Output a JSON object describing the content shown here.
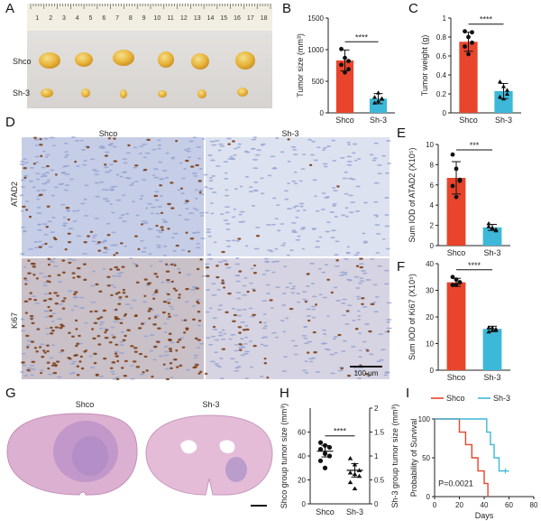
{
  "panels": {
    "A": {
      "label": "A",
      "ruler_numbers": [
        "1",
        "2",
        "3",
        "4",
        "5",
        "6",
        "7",
        "8",
        "9",
        "10",
        "11",
        "12",
        "13",
        "14",
        "15",
        "16",
        "17",
        "18"
      ],
      "row_labels": [
        "Shco",
        "Sh-3"
      ]
    },
    "B": {
      "label": "B"
    },
    "C": {
      "label": "C"
    },
    "D": {
      "label": "D",
      "column_labels": [
        "Shco",
        "Sh-3"
      ],
      "row_labels": [
        "ATAD2",
        "Ki67"
      ],
      "scale_bar": "100 μm"
    },
    "E": {
      "label": "E"
    },
    "F": {
      "label": "F"
    },
    "G": {
      "label": "G",
      "column_labels": [
        "Shco",
        "Sh-3"
      ]
    },
    "H": {
      "label": "H"
    },
    "I": {
      "label": "I"
    }
  },
  "colors": {
    "shco": "#e8452c",
    "sh3": "#3db8d8",
    "he_tissue": "#dcb0d0",
    "ihc_blue": "#8f9fd0",
    "ihc_brown": "#7a3a10"
  },
  "chart_data": [
    {
      "id": "B",
      "type": "bar",
      "categories": [
        "Shco",
        "Sh-3"
      ],
      "values": [
        830,
        225
      ],
      "errors": [
        165,
        80
      ],
      "points": [
        [
          1010,
          870,
          820,
          760,
          640,
          690
        ],
        [
          160,
          320,
          230,
          250,
          190,
          220
        ]
      ],
      "ylabel": "Tumor size (mm³)",
      "ylim": [
        0,
        1500
      ],
      "yticks": [
        0,
        500,
        1000,
        1500
      ],
      "significance": "****"
    },
    {
      "id": "C",
      "type": "bar",
      "categories": [
        "Shco",
        "Sh-3"
      ],
      "values": [
        0.75,
        0.23
      ],
      "errors": [
        0.1,
        0.08
      ],
      "points": [
        [
          0.86,
          0.8,
          0.74,
          0.7,
          0.62,
          0.85
        ],
        [
          0.33,
          0.28,
          0.2,
          0.17,
          0.15,
          0.24
        ]
      ],
      "ylabel": "Tumor weight (g)",
      "ylim": [
        0,
        1.0
      ],
      "yticks": [
        0.0,
        0.2,
        0.4,
        0.6,
        0.8,
        1.0
      ],
      "significance": "****"
    },
    {
      "id": "E",
      "type": "bar",
      "categories": [
        "Shco",
        "Sh-3"
      ],
      "values": [
        6.7,
        1.8
      ],
      "errors": [
        1.6,
        0.3
      ],
      "points": [
        [
          9.0,
          7.6,
          6.5,
          5.9,
          4.8,
          6.4
        ],
        [
          2.2,
          1.8,
          1.6,
          1.9,
          1.7,
          1.5
        ]
      ],
      "ylabel": "Sum IOD of ATAD2 (X10⁵)",
      "ylim": [
        0,
        10
      ],
      "yticks": [
        0,
        2,
        4,
        6,
        8,
        10
      ],
      "significance": "***"
    },
    {
      "id": "F",
      "type": "bar",
      "categories": [
        "Shco",
        "Sh-3"
      ],
      "values": [
        33,
        15.5
      ],
      "errors": [
        1.5,
        1.0
      ],
      "points": [
        [
          35,
          34,
          33,
          32,
          32,
          33
        ],
        [
          16,
          15,
          15,
          14.5,
          16,
          15.5
        ]
      ],
      "ylabel": "Sum IOD of Ki67 (X10⁵)",
      "ylim": [
        0,
        40
      ],
      "yticks": [
        0,
        10,
        20,
        30,
        40
      ],
      "significance": "****"
    },
    {
      "id": "H",
      "type": "scatter",
      "categories": [
        "Shco",
        "Sh-3"
      ],
      "points": [
        [
          1.28,
          1.22,
          1.18,
          1.14,
          1.05,
          1.0,
          0.9,
          0.75
        ],
        [
          0.95,
          0.82,
          0.7,
          0.65,
          0.62,
          0.58,
          0.45,
          0.32
        ]
      ],
      "means": [
        1.1,
        0.7
      ],
      "sems": [
        0.12,
        0.14
      ],
      "ylabel_left": "Shco group tumor size (mm³)",
      "ylabel_right": "Sh-3 group tumor size (mm³)",
      "ylim": [
        0,
        2.0
      ],
      "yticks_left": [
        0,
        20,
        40,
        60
      ],
      "yticks_right": [
        0.0,
        0.5,
        1.0,
        1.5,
        2.0
      ],
      "significance": "****"
    },
    {
      "id": "I",
      "type": "line",
      "series": [
        {
          "name": "Shco",
          "steps": [
            [
              0,
              100
            ],
            [
              20,
              100
            ],
            [
              20,
              83
            ],
            [
              25,
              83
            ],
            [
              25,
              67
            ],
            [
              30,
              67
            ],
            [
              30,
              50
            ],
            [
              35,
              50
            ],
            [
              35,
              33
            ],
            [
              40,
              33
            ],
            [
              40,
              17
            ],
            [
              43,
              17
            ],
            [
              43,
              0
            ]
          ]
        },
        {
          "name": "Sh-3",
          "steps": [
            [
              0,
              100
            ],
            [
              42,
              100
            ],
            [
              42,
              83
            ],
            [
              45,
              83
            ],
            [
              45,
              67
            ],
            [
              48,
              67
            ],
            [
              48,
              50
            ],
            [
              52,
              50
            ],
            [
              52,
              33
            ],
            [
              60,
              33
            ]
          ]
        }
      ],
      "xlabel": "Days",
      "ylabel": "Probability of Survival",
      "xlim": [
        0,
        80
      ],
      "ylim": [
        0,
        100
      ],
      "xticks": [
        0,
        20,
        40,
        60,
        80
      ],
      "yticks": [
        0,
        50,
        100
      ],
      "annotation": "P=0.0021"
    }
  ]
}
